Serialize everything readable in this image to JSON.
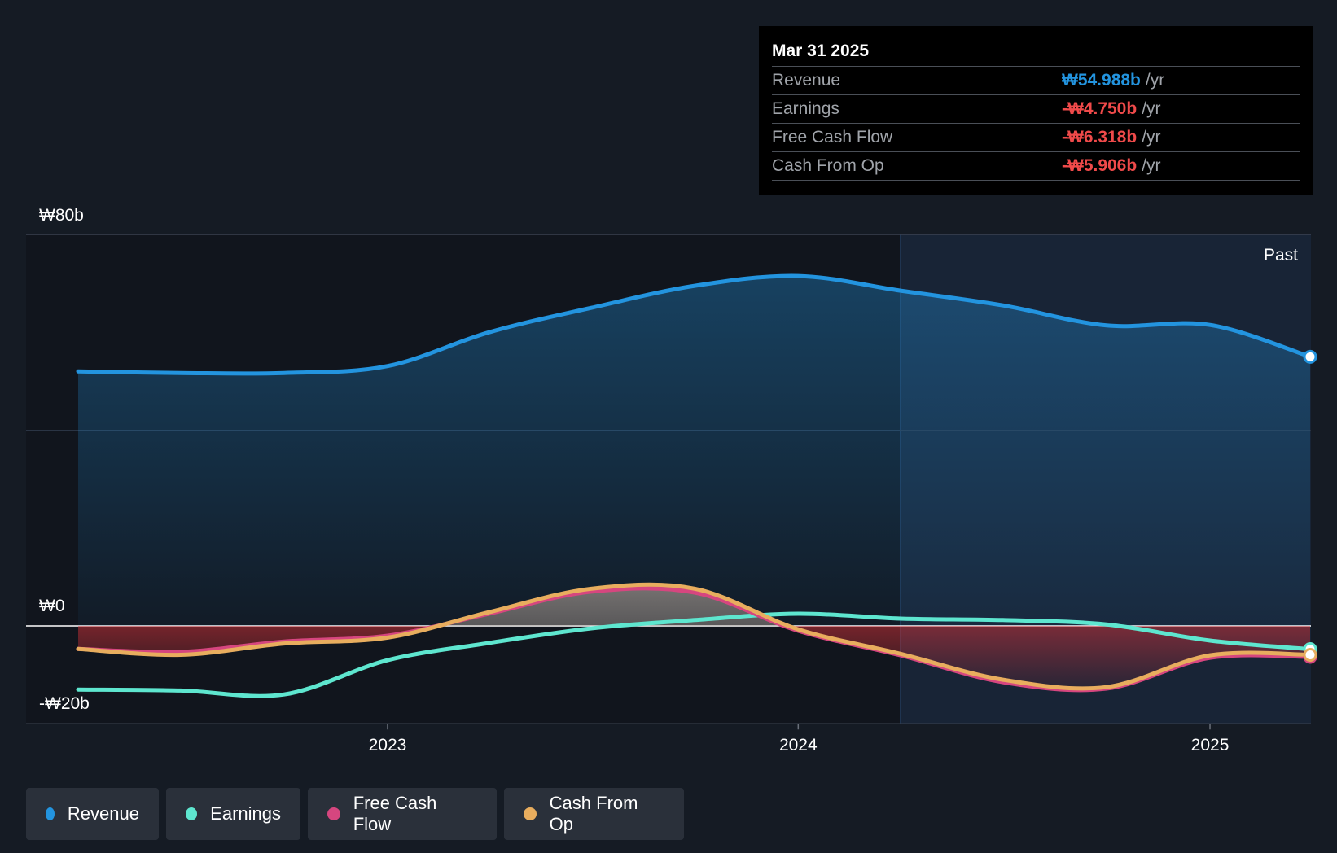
{
  "chart_data": {
    "type": "area",
    "x": [
      "2022-04-01",
      "2022-07-01",
      "2022-10-01",
      "2023-01-01",
      "2023-04-01",
      "2023-07-01",
      "2023-10-01",
      "2024-01-01",
      "2024-04-01",
      "2024-07-01",
      "2024-10-01",
      "2025-01-01",
      "2025-03-31"
    ],
    "x_ticks": [
      {
        "value": "2023-01-01",
        "label": "2023"
      },
      {
        "value": "2024-01-01",
        "label": "2024"
      },
      {
        "value": "2025-01-01",
        "label": "2025"
      }
    ],
    "y_ticks": [
      {
        "value": 80,
        "label": "₩80b"
      },
      {
        "value": 0,
        "label": "₩0"
      },
      {
        "value": -20,
        "label": "-₩20b"
      }
    ],
    "ylim": [
      -20,
      80
    ],
    "xlim": [
      "2022-04-01",
      "2025-03-31"
    ],
    "unit": "₩ billions",
    "forecast_label": "Past",
    "series": [
      {
        "name": "Revenue",
        "color": "#2394df",
        "values": [
          52.0,
          51.7,
          51.7,
          53.1,
          60.0,
          65.0,
          69.5,
          71.5,
          68.5,
          65.5,
          61.4,
          61.5,
          55.0
        ]
      },
      {
        "name": "Earnings",
        "color": "#5ee6cf",
        "values": [
          -13.0,
          -13.2,
          -14.0,
          -7.0,
          -3.5,
          -0.5,
          1.2,
          2.5,
          1.5,
          1.2,
          0.3,
          -3.0,
          -4.75
        ]
      },
      {
        "name": "Free Cash Flow",
        "color": "#d6467f",
        "values": [
          -4.7,
          -5.3,
          -3.2,
          -2.0,
          2.5,
          7.0,
          6.8,
          -1.0,
          -6.0,
          -11.5,
          -12.8,
          -6.5,
          -6.32
        ]
      },
      {
        "name": "Cash From Op",
        "color": "#e8ad5e",
        "values": [
          -4.7,
          -5.9,
          -3.6,
          -2.4,
          2.8,
          7.6,
          7.6,
          -0.7,
          -5.7,
          -11.0,
          -12.5,
          -6.0,
          -5.91
        ]
      }
    ]
  },
  "tooltip": {
    "date": "Mar 31 2025",
    "rows": [
      {
        "label": "Revenue",
        "value": "₩54.988b",
        "unit": "/yr",
        "color": "#2394df"
      },
      {
        "label": "Earnings",
        "value": "-₩4.750b",
        "unit": "/yr",
        "color": "#ef4a4a"
      },
      {
        "label": "Free Cash Flow",
        "value": "-₩6.318b",
        "unit": "/yr",
        "color": "#ef4a4a"
      },
      {
        "label": "Cash From Op",
        "value": "-₩5.906b",
        "unit": "/yr",
        "color": "#ef4a4a"
      }
    ]
  },
  "legend": [
    {
      "label": "Revenue",
      "color": "#2394df"
    },
    {
      "label": "Earnings",
      "color": "#5ee6cf"
    },
    {
      "label": "Free Cash Flow",
      "color": "#d6467f"
    },
    {
      "label": "Cash From Op",
      "color": "#e8ad5e"
    }
  ]
}
